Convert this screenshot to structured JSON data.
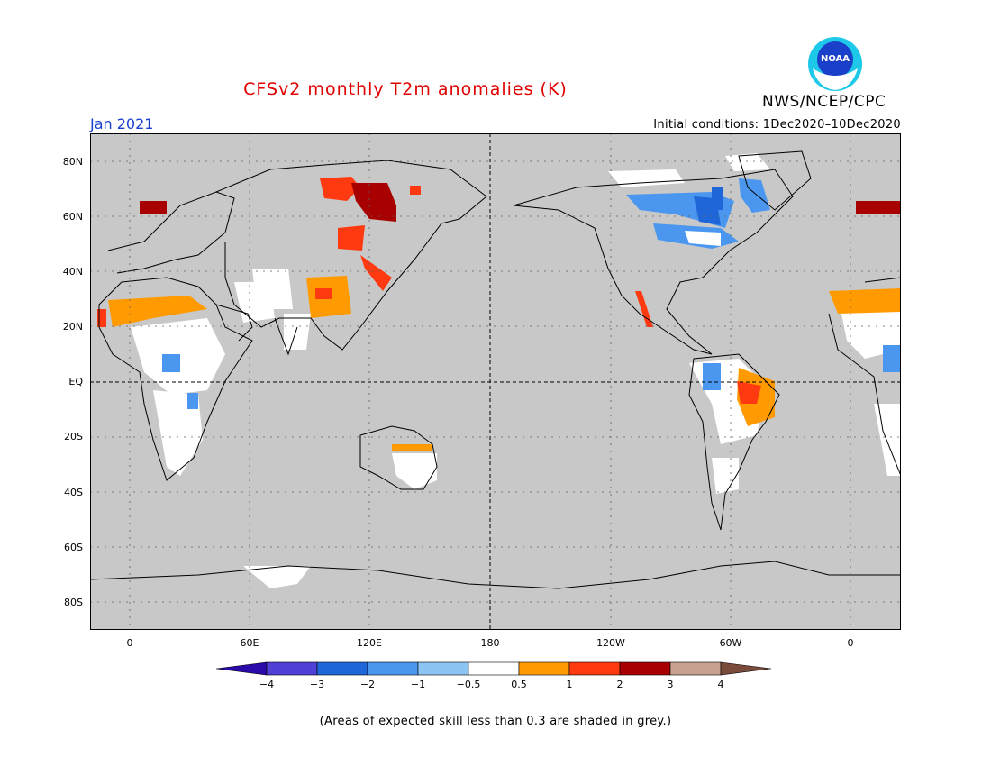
{
  "header": {
    "title": "CFSv2 monthly T2m anomalies (K)",
    "org": "NWS/NCEP/CPC",
    "logo_text": "NOAA",
    "month": "Jan 2021",
    "initial_conditions": "Initial conditions: 1Dec2020–10Dec2020"
  },
  "axes": {
    "y_labels": [
      "80N",
      "60N",
      "40N",
      "20N",
      "EQ",
      "20S",
      "40S",
      "60S",
      "80S"
    ],
    "x_labels": [
      "0",
      "60E",
      "120E",
      "180",
      "120W",
      "60W",
      "0"
    ]
  },
  "colorbar": {
    "labels": [
      "−4",
      "−3",
      "−2",
      "−1",
      "−0.5",
      "0.5",
      "1",
      "2",
      "3",
      "4"
    ],
    "colors": [
      "#2a0aa8",
      "#5040d8",
      "#1f66d8",
      "#4b97f0",
      "#8cc4f4",
      "#ffffff",
      "#ff9a00",
      "#ff3a10",
      "#a80000",
      "#c8a090",
      "#7a4a3a"
    ]
  },
  "footnote": "(Areas of expected skill less than 0.3 are shaded in grey.)",
  "colors": {
    "map_background": "#c8c8c8",
    "title": "#e00000",
    "month": "#1a3fd0"
  }
}
